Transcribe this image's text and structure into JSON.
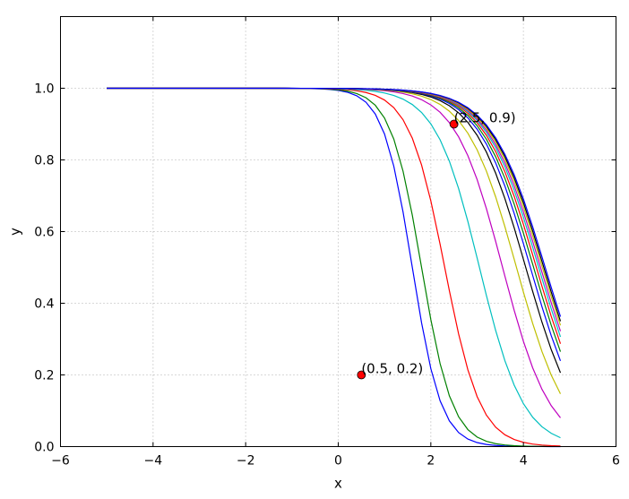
{
  "chart_data": {
    "type": "line",
    "title": "",
    "xlabel": "x",
    "ylabel": "y",
    "xlim": [
      -6,
      6
    ],
    "ylim": [
      0.0,
      1.2
    ],
    "xticks": [
      -6,
      -4,
      -2,
      0,
      2,
      4,
      6
    ],
    "xtick_labels": [
      "−6",
      "−4",
      "−2",
      "0",
      "2",
      "4",
      "6"
    ],
    "yticks": [
      0.0,
      0.2,
      0.4,
      0.6,
      0.8,
      1.0
    ],
    "ytick_labels": [
      "0.0",
      "0.2",
      "0.4",
      "0.6",
      "0.8",
      "1.0"
    ],
    "grid": true,
    "legend": false,
    "x_range_of_curves": [
      -5,
      4.8
    ],
    "series": [
      {
        "color": "#0000ff",
        "midpoint": 1.6,
        "steepness": 3.2
      },
      {
        "color": "#008000",
        "midpoint": 1.8,
        "steepness": 3.0
      },
      {
        "color": "#ff0000",
        "midpoint": 2.3,
        "steepness": 2.6
      },
      {
        "color": "#00bfbf",
        "midpoint": 3.05,
        "steepness": 2.1
      },
      {
        "color": "#bf00bf",
        "midpoint": 3.55,
        "steepness": 1.95
      },
      {
        "color": "#bfbf00",
        "midpoint": 3.85,
        "steepness": 1.85
      },
      {
        "color": "#000000",
        "midpoint": 4.05,
        "steepness": 1.8
      },
      {
        "color": "#0000ff",
        "midpoint": 4.15,
        "steepness": 1.78
      },
      {
        "color": "#008000",
        "midpoint": 4.22,
        "steepness": 1.76
      },
      {
        "color": "#ff0000",
        "midpoint": 4.28,
        "steepness": 1.75
      },
      {
        "color": "#00bfbf",
        "midpoint": 4.33,
        "steepness": 1.74
      },
      {
        "color": "#bf00bf",
        "midpoint": 4.37,
        "steepness": 1.73
      },
      {
        "color": "#bfbf00",
        "midpoint": 4.41,
        "steepness": 1.72
      },
      {
        "color": "#000000",
        "midpoint": 4.44,
        "steepness": 1.72
      },
      {
        "color": "#0000ff",
        "midpoint": 4.47,
        "steepness": 1.71
      }
    ],
    "annotations": [
      {
        "x": 0.5,
        "y": 0.2,
        "label": "(0.5, 0.2)"
      },
      {
        "x": 2.5,
        "y": 0.9,
        "label": "(2.5, 0.9)"
      }
    ],
    "marker_color": "#ff0000"
  }
}
